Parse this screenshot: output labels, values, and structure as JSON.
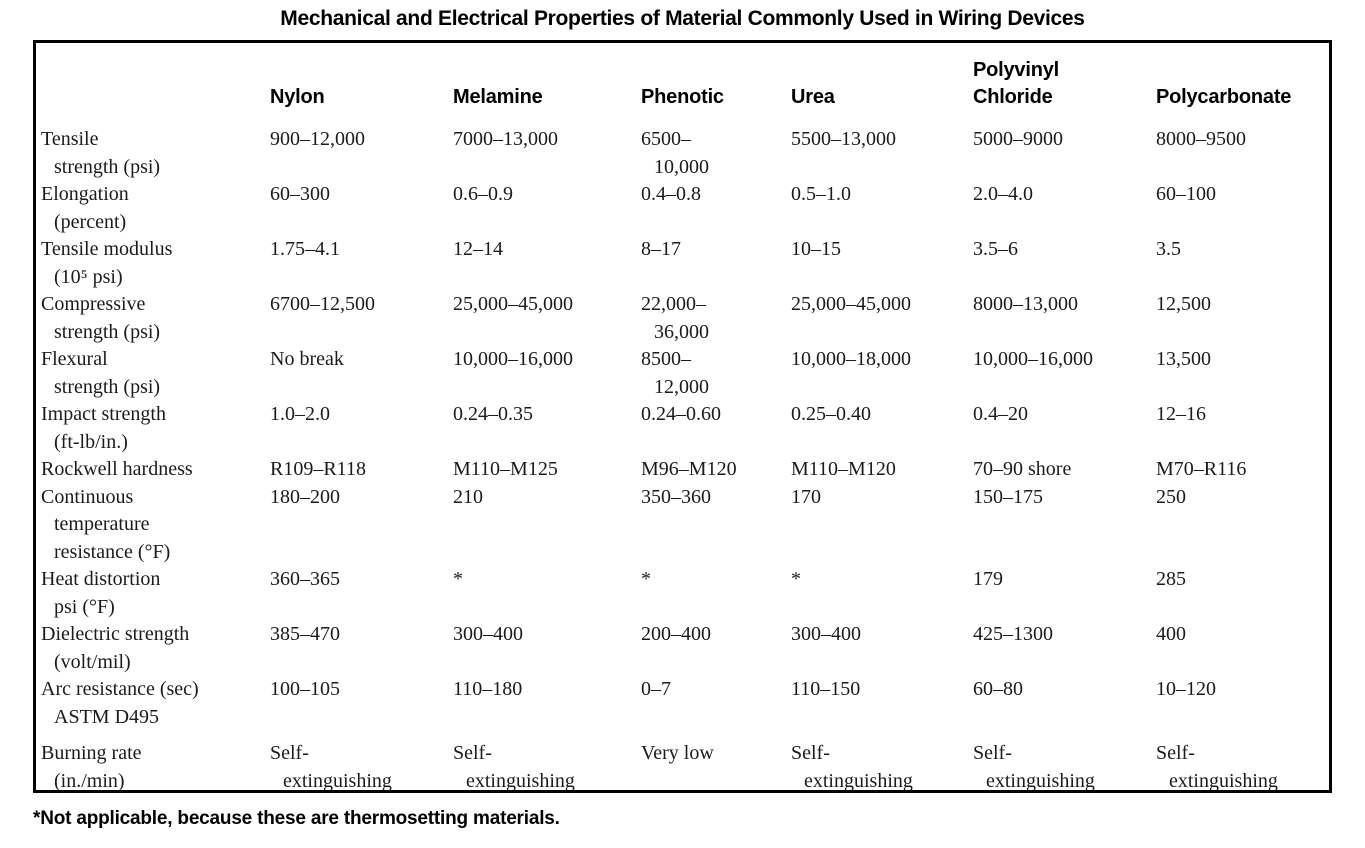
{
  "page": {
    "title": "Mechanical and Electrical Properties of Material Commonly Used in Wiring Devices",
    "footnote": "*Not applicable, because these are thermosetting materials."
  },
  "colors": {
    "text": "#1b1b1b",
    "heading": "#000000",
    "table_border": "#000000",
    "background": "#ffffff"
  },
  "table": {
    "columns": [
      "",
      "Nylon",
      "Melamine",
      "Phenotic",
      "Urea",
      "Polyvinyl\nChloride",
      "Polycarbonate"
    ],
    "rows": [
      {
        "label": "Tensile\nstrength (psi)",
        "values": [
          "900–12,000",
          "7000–13,000",
          "6500–\n10,000",
          "5500–13,000",
          "5000–9000",
          "8000–9500"
        ]
      },
      {
        "label": "Elongation\n(percent)",
        "values": [
          "60–300",
          "0.6–0.9",
          "0.4–0.8",
          "0.5–1.0",
          "2.0–4.0",
          "60–100"
        ]
      },
      {
        "label": "Tensile modulus\n(10⁵ psi)",
        "values": [
          "1.75–4.1",
          "12–14",
          "8–17",
          "10–15",
          "3.5–6",
          "3.5"
        ]
      },
      {
        "label": "Compressive\nstrength (psi)",
        "values": [
          "6700–12,500",
          "25,000–45,000",
          "22,000–\n36,000",
          "25,000–45,000",
          "8000–13,000",
          "12,500"
        ]
      },
      {
        "label": "Flexural\nstrength (psi)",
        "values": [
          "No break",
          "10,000–16,000",
          "8500–\n12,000",
          "10,000–18,000",
          "10,000–16,000",
          "13,500"
        ]
      },
      {
        "label": "Impact strength\n(ft-lb/in.)",
        "values": [
          "1.0–2.0",
          "0.24–0.35",
          "0.24–0.60",
          "0.25–0.40",
          "0.4–20",
          "12–16"
        ]
      },
      {
        "label": "Rockwell hardness",
        "values": [
          "R109–R118",
          "M110–M125",
          "M96–M120",
          "M110–M120",
          "70–90 shore",
          "M70–R116"
        ]
      },
      {
        "label": "Continuous\ntemperature\nresistance (°F)",
        "values": [
          "180–200",
          "210",
          "350–360",
          "170",
          "150–175",
          "250"
        ]
      },
      {
        "label": "Heat distortion\npsi (°F)",
        "values": [
          "360–365",
          "*",
          "*",
          "*",
          "179",
          "285"
        ]
      },
      {
        "label": "Dielectric strength\n(volt/mil)",
        "values": [
          "385–470",
          "300–400",
          "200–400",
          "300–400",
          "425–1300",
          "400"
        ]
      },
      {
        "label": "Arc resistance (sec)\nASTM D495",
        "values": [
          "100–105",
          "110–180",
          "0–7",
          "110–150",
          "60–80",
          "10–120"
        ]
      },
      {
        "label": "Burning rate\n(in./min)",
        "values": [
          "Self-\nextinguishing",
          "Self-\nextinguishing",
          "Very low",
          "Self-\nextinguishing",
          "Self-\nextinguishing",
          "Self-\nextinguishing"
        ]
      }
    ]
  }
}
